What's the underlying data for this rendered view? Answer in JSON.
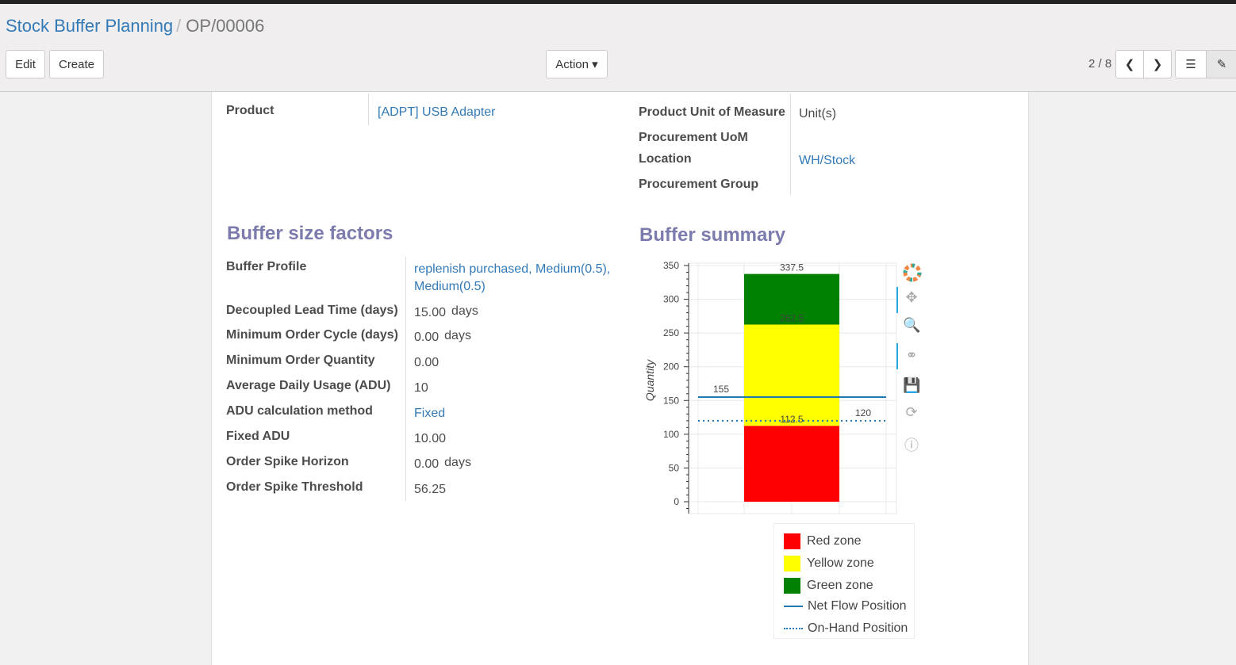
{
  "breadcrumb": {
    "parent": "Stock Buffer Planning",
    "current": "OP/00006"
  },
  "buttons": {
    "edit": "Edit",
    "create": "Create",
    "action": "Action ▾"
  },
  "pager": {
    "value": "2 / 8"
  },
  "fields": {
    "product_label": "Product",
    "product_value": "[ADPT] USB Adapter",
    "uom_label": "Product Unit of Measure",
    "uom_value": "Unit(s)",
    "proc_uom_label": "Procurement UoM",
    "location_label": "Location",
    "location_value": "WH/Stock",
    "proc_group_label": "Procurement Group"
  },
  "factors": {
    "title": "Buffer size factors",
    "rows": [
      {
        "label": "Buffer Profile",
        "value": "replenish purchased, Medium(0.5),",
        "value2": "Medium(0.5)",
        "link": true
      },
      {
        "label": "Decoupled Lead Time (days)",
        "value": "15.00",
        "unit": "days"
      },
      {
        "label": "Minimum Order Cycle (days)",
        "value": "0.00",
        "unit": "days"
      },
      {
        "label": "Minimum Order Quantity",
        "value": "0.00"
      },
      {
        "label": "Average Daily Usage (ADU)",
        "value": "10"
      },
      {
        "label": "ADU calculation method",
        "value": "Fixed",
        "link": true
      },
      {
        "label": "Fixed ADU",
        "value": "10.00"
      },
      {
        "label": "Order Spike Horizon",
        "value": "0.00",
        "unit": "days"
      },
      {
        "label": "Order Spike Threshold",
        "value": "56.25"
      }
    ]
  },
  "summary": {
    "title": "Buffer summary"
  },
  "chart_data": {
    "type": "bar",
    "stacked": true,
    "ylabel": "Quantity",
    "ylim": [
      0,
      350
    ],
    "yticks": [
      "0",
      "50",
      "100",
      "150",
      "200",
      "250",
      "300",
      "350"
    ],
    "grid": true,
    "series": [
      {
        "name": "Red zone",
        "bottom": 0,
        "top": 112.5,
        "color": "#ff0000",
        "label": "112.5"
      },
      {
        "name": "Yellow zone",
        "bottom": 112.5,
        "top": 262.5,
        "color": "#ffff00",
        "label": "262.5"
      },
      {
        "name": "Green zone",
        "bottom": 262.5,
        "top": 337.5,
        "color": "#008000",
        "label": "337.5"
      }
    ],
    "lines": [
      {
        "name": "Net Flow Position",
        "value": 155,
        "style": "solid",
        "color": "#1f77b4",
        "label": "155"
      },
      {
        "name": "On-Hand Position",
        "value": 120,
        "style": "dotted",
        "color": "#1f77b4",
        "label": "120"
      }
    ],
    "legend": "bottom"
  }
}
